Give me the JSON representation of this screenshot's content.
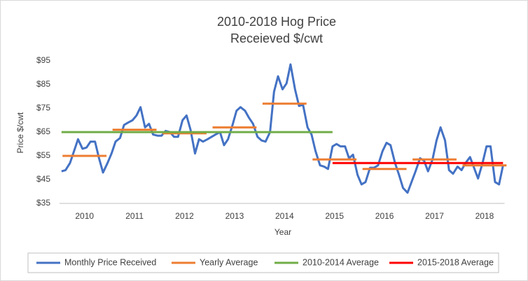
{
  "chart_data": {
    "type": "line",
    "title": [
      "2010-2018 Hog Price",
      "Receieved $/cwt"
    ],
    "y_label": "Price $/cwt",
    "x_label": "Year",
    "xlim": [
      2009.5,
      2018.4
    ],
    "xticks": [
      2010,
      2011,
      2012,
      2013,
      2014,
      2015,
      2016,
      2017,
      2018
    ],
    "ylim": [
      35,
      95
    ],
    "yticks": [
      {
        "value": 35,
        "label": "$35"
      },
      {
        "value": 45,
        "label": "$45"
      },
      {
        "value": 55,
        "label": "$55"
      },
      {
        "value": 65,
        "label": "$65"
      },
      {
        "value": 75,
        "label": "$75"
      },
      {
        "value": 85,
        "label": "$85"
      },
      {
        "value": 95,
        "label": "$95"
      }
    ],
    "grid": false,
    "legend": "bottom",
    "series": [
      {
        "name": "Monthly Price Received",
        "color": "#4472c4",
        "style": "line",
        "x": [
          2009.54,
          2009.62,
          2009.71,
          2009.79,
          2009.87,
          2009.96,
          2010.04,
          2010.12,
          2010.21,
          2010.29,
          2010.37,
          2010.46,
          2010.54,
          2010.62,
          2010.71,
          2010.79,
          2010.87,
          2010.96,
          2011.04,
          2011.12,
          2011.21,
          2011.29,
          2011.37,
          2011.46,
          2011.54,
          2011.62,
          2011.71,
          2011.79,
          2011.87,
          2011.96,
          2012.04,
          2012.12,
          2012.21,
          2012.29,
          2012.37,
          2012.46,
          2012.54,
          2012.62,
          2012.71,
          2012.79,
          2012.87,
          2012.96,
          2013.04,
          2013.12,
          2013.21,
          2013.29,
          2013.37,
          2013.46,
          2013.54,
          2013.62,
          2013.71,
          2013.79,
          2013.87,
          2013.96,
          2014.04,
          2014.12,
          2014.21,
          2014.29,
          2014.37,
          2014.46,
          2014.54,
          2014.62,
          2014.71,
          2014.79,
          2014.87,
          2014.96,
          2015.04,
          2015.12,
          2015.21,
          2015.29,
          2015.37,
          2015.46,
          2015.54,
          2015.62,
          2015.71,
          2015.79,
          2015.87,
          2015.96,
          2016.04,
          2016.12,
          2016.21,
          2016.29,
          2016.37,
          2016.46,
          2016.54,
          2016.62,
          2016.71,
          2016.79,
          2016.87,
          2016.96,
          2017.04,
          2017.12,
          2017.21,
          2017.29,
          2017.37,
          2017.46,
          2017.54,
          2017.62,
          2017.71,
          2017.79,
          2017.87,
          2017.96,
          2018.04,
          2018.12,
          2018.21,
          2018.29,
          2018.37
        ],
        "values": [
          48.5,
          49,
          52,
          57,
          62,
          58,
          58.5,
          61,
          61,
          54,
          48,
          52,
          56,
          61,
          62.5,
          68,
          69,
          70,
          72,
          75.5,
          67,
          68.5,
          64,
          63.5,
          63.5,
          65.5,
          65,
          63,
          63,
          70,
          72,
          66,
          56,
          62,
          61,
          62,
          63,
          64,
          65,
          59.5,
          62,
          68,
          74,
          75.5,
          74,
          71,
          68.5,
          63,
          61.5,
          61,
          65,
          82,
          88.5,
          83,
          85.5,
          93.5,
          83,
          76,
          76.5,
          67,
          64,
          57,
          51,
          50.5,
          49.5,
          59,
          60,
          59,
          59,
          54,
          55.5,
          47,
          43,
          44,
          50,
          50,
          51,
          57,
          60.5,
          59.5,
          52,
          47,
          41.5,
          39.5,
          44,
          48.5,
          54,
          53,
          48.5,
          53.5,
          61.5,
          67,
          61.5,
          49,
          47.5,
          50.5,
          49,
          52,
          54.5,
          50,
          45.5,
          52,
          59,
          59,
          44,
          43,
          51
        ]
      },
      {
        "name": "Yearly Average",
        "color": "#ed7d31",
        "style": "segments",
        "x": [
          2010,
          2011,
          2012,
          2013,
          2014,
          2015,
          2016,
          2017,
          2018
        ],
        "values": [
          55,
          66,
          64.5,
          67,
          77,
          53.5,
          49.5,
          53.5,
          51
        ]
      },
      {
        "name": "2010-2014 Average",
        "color": "#70ad47",
        "style": "line",
        "x": [
          2009.54,
          2014.96
        ],
        "values": [
          65,
          65
        ]
      },
      {
        "name": "2015-2018 Average",
        "color": "#ff0000",
        "style": "line",
        "x": [
          2014.96,
          2018.37
        ],
        "values": [
          52,
          52
        ]
      }
    ]
  }
}
